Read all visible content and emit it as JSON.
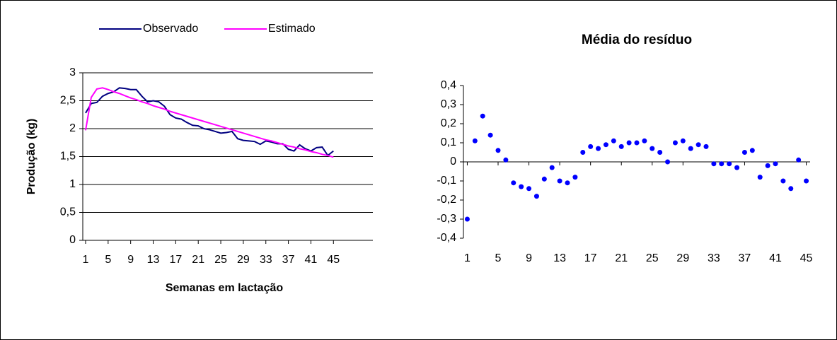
{
  "chart_data": [
    {
      "type": "line",
      "x_label": "Semanas em lactação",
      "y_label": "Produção (kg)",
      "x": [
        1,
        2,
        3,
        4,
        5,
        6,
        7,
        8,
        9,
        10,
        11,
        12,
        13,
        14,
        15,
        16,
        17,
        18,
        19,
        20,
        21,
        22,
        23,
        24,
        25,
        26,
        27,
        28,
        29,
        30,
        31,
        32,
        33,
        34,
        35,
        36,
        37,
        38,
        39,
        40,
        41,
        42,
        43,
        44,
        45
      ],
      "series": [
        {
          "name": "Observado",
          "color": "#000080",
          "values": [
            2.28,
            2.45,
            2.47,
            2.58,
            2.63,
            2.66,
            2.73,
            2.72,
            2.7,
            2.7,
            2.58,
            2.48,
            2.5,
            2.48,
            2.4,
            2.25,
            2.19,
            2.17,
            2.11,
            2.06,
            2.05,
            2.0,
            1.98,
            1.95,
            1.92,
            1.93,
            1.95,
            1.82,
            1.79,
            1.78,
            1.77,
            1.72,
            1.78,
            1.76,
            1.73,
            1.73,
            1.63,
            1.6,
            1.71,
            1.64,
            1.6,
            1.66,
            1.67,
            1.52,
            1.6
          ]
        },
        {
          "name": "Estimado",
          "color": "#ff00ff",
          "values": [
            1.97,
            2.56,
            2.71,
            2.73,
            2.7,
            2.66,
            2.63,
            2.59,
            2.55,
            2.52,
            2.48,
            2.45,
            2.41,
            2.38,
            2.35,
            2.31,
            2.28,
            2.25,
            2.22,
            2.19,
            2.16,
            2.13,
            2.1,
            2.07,
            2.04,
            2.01,
            1.98,
            1.95,
            1.92,
            1.89,
            1.86,
            1.83,
            1.8,
            1.78,
            1.75,
            1.72,
            1.69,
            1.67,
            1.64,
            1.62,
            1.59,
            1.57,
            1.54,
            1.52,
            1.49
          ]
        }
      ],
      "xlim": [
        0.5,
        52
      ],
      "xticks": [
        1,
        5,
        9,
        13,
        17,
        21,
        25,
        29,
        33,
        37,
        41,
        45
      ],
      "ylim": [
        0,
        3
      ],
      "yticks": [
        0,
        {
          "value": 0.5,
          "label": "0,5"
        },
        1,
        {
          "value": 1.5,
          "label": "1,5"
        },
        2,
        {
          "value": 2.5,
          "label": "2,5"
        },
        3
      ],
      "grid": true,
      "legend": "top"
    },
    {
      "type": "scatter",
      "title": "Média do resíduo",
      "color": "#0000ff",
      "x": [
        1,
        2,
        3,
        4,
        5,
        6,
        7,
        8,
        9,
        10,
        11,
        12,
        13,
        14,
        15,
        16,
        17,
        18,
        19,
        20,
        21,
        22,
        23,
        24,
        25,
        26,
        27,
        28,
        29,
        30,
        31,
        32,
        33,
        34,
        35,
        36,
        37,
        38,
        39,
        40,
        41,
        42,
        43,
        44,
        45
      ],
      "values": [
        -0.3,
        0.11,
        0.24,
        0.14,
        0.06,
        0.01,
        -0.11,
        -0.13,
        -0.14,
        -0.18,
        -0.09,
        -0.03,
        -0.1,
        -0.11,
        -0.08,
        0.05,
        0.08,
        0.07,
        0.09,
        0.11,
        0.08,
        0.1,
        0.1,
        0.11,
        0.07,
        0.05,
        0.0,
        0.1,
        0.11,
        0.07,
        0.09,
        0.08,
        -0.01,
        -0.01,
        -0.01,
        -0.03,
        0.05,
        0.06,
        -0.08,
        -0.02,
        -0.01,
        -0.1,
        -0.14,
        0.01,
        -0.1
      ],
      "xlim": [
        0.5,
        45.5
      ],
      "xticks": [
        1,
        5,
        9,
        13,
        17,
        21,
        25,
        29,
        33,
        37,
        41,
        45
      ],
      "ylim": [
        -0.4,
        0.4
      ],
      "yticks": [
        {
          "value": -0.4,
          "label": "-0,4"
        },
        {
          "value": -0.3,
          "label": "-0,3"
        },
        {
          "value": -0.2,
          "label": "-0,2"
        },
        {
          "value": -0.1,
          "label": "-0,1"
        },
        0,
        {
          "value": 0.1,
          "label": "0,1"
        },
        {
          "value": 0.2,
          "label": "0,2"
        },
        {
          "value": 0.3,
          "label": "0,3"
        },
        {
          "value": 0.4,
          "label": "0,4"
        }
      ],
      "grid": false
    }
  ]
}
